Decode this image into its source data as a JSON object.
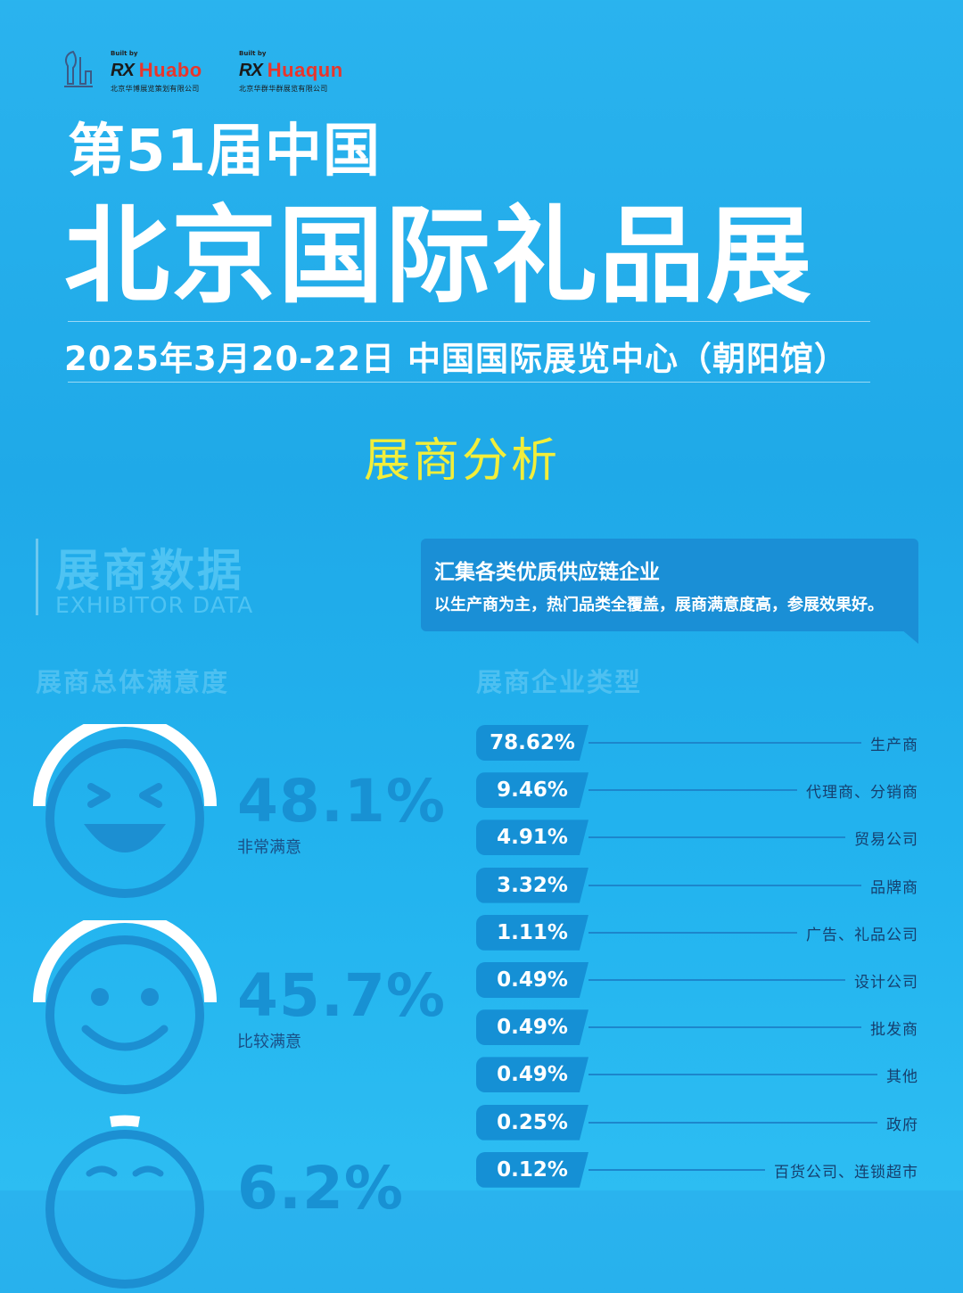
{
  "logos": {
    "rx_label": "RX",
    "huabo": {
      "built_by": "Built by",
      "name": "Huabo",
      "sub": "北京华博展览策划有限公司"
    },
    "huaqun": {
      "built_by": "Built by",
      "name": "Huaqun",
      "sub": "北京华群华群展览有限公司"
    }
  },
  "header": {
    "edition": "第51届中国",
    "title": "北京国际礼品展",
    "date_venue": "2025年3月20-22日 中国国际展览中心（朝阳馆）",
    "section": "展商分析"
  },
  "exhibitor_heading": {
    "cn": "展商数据",
    "en": "EXHIBITOR DATA"
  },
  "callout": {
    "headline": "汇集各类优质供应链企业",
    "body": "以生产商为主，热门品类全覆盖，展商满意度高，参展效果好。"
  },
  "colors": {
    "accent_blue": "#1590d5",
    "title_yellow": "#f2ee3a",
    "face_blue": "#1c8fd2"
  },
  "chart_data": [
    {
      "type": "table",
      "title": "展商总体满意度",
      "rows": [
        {
          "label": "非常满意",
          "value": 48.1,
          "display": "48.1%",
          "icon": "laughing-face-icon"
        },
        {
          "label": "比较满意",
          "value": 45.7,
          "display": "45.7%",
          "icon": "smiling-face-icon"
        },
        {
          "label": "",
          "value": 6.2,
          "display": "6.2%",
          "icon": "neutral-face-icon"
        }
      ]
    },
    {
      "type": "bar",
      "title": "展商企业类型",
      "categories": [
        "生产商",
        "代理商、分销商",
        "贸易公司",
        "品牌商",
        "广告、礼品公司",
        "设计公司",
        "批发商",
        "其他",
        "政府",
        "百货公司、连锁超市"
      ],
      "values": [
        78.62,
        9.46,
        4.91,
        3.32,
        1.11,
        0.49,
        0.49,
        0.49,
        0.25,
        0.12
      ],
      "labels": [
        "78.62%",
        "9.46%",
        "4.91%",
        "3.32%",
        "1.11%",
        "0.49%",
        "0.49%",
        "0.49%",
        "0.25%",
        "0.12%"
      ]
    }
  ]
}
